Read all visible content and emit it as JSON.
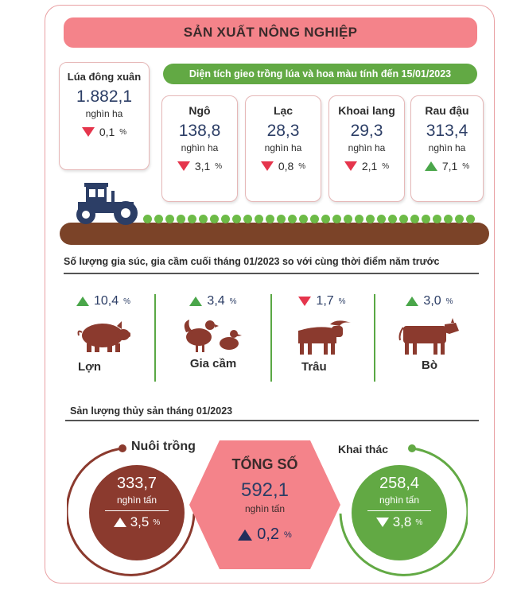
{
  "title": "SẢN XUẤT NÔNG NGHIỆP",
  "rice": {
    "name": "Lúa đông xuân",
    "value": "1.882,1",
    "unit": "nghìn ha",
    "change": "0,1",
    "pct": "%",
    "direction": "down"
  },
  "planting_banner": "Diện tích gieo trồng lúa và hoa màu tính đến 15/01/2023",
  "crops": [
    {
      "name": "Ngô",
      "value": "138,8",
      "unit": "nghìn ha",
      "change": "3,1",
      "pct": "%",
      "direction": "down"
    },
    {
      "name": "Lạc",
      "value": "28,3",
      "unit": "nghìn ha",
      "change": "0,8",
      "pct": "%",
      "direction": "down"
    },
    {
      "name": "Khoai lang",
      "value": "29,3",
      "unit": "nghìn ha",
      "change": "2,1",
      "pct": "%",
      "direction": "down"
    },
    {
      "name": "Rau đậu",
      "value": "313,4",
      "unit": "nghìn ha",
      "change": "7,1",
      "pct": "%",
      "direction": "up"
    }
  ],
  "livestock_heading": "Số lượng gia súc, gia cầm cuối tháng 01/2023 so với cùng thời điểm năm trước",
  "livestock": [
    {
      "name": "Lợn",
      "change": "10,4",
      "pct": "%",
      "direction": "up"
    },
    {
      "name": "Gia cầm",
      "change": "3,4",
      "pct": "%",
      "direction": "up"
    },
    {
      "name": "Trâu",
      "change": "1,7",
      "pct": "%",
      "direction": "down"
    },
    {
      "name": "Bò",
      "change": "3,0",
      "pct": "%",
      "direction": "up"
    }
  ],
  "fishery_heading": "Sản lượng thủy sản tháng 01/2023",
  "fishery": {
    "aquaculture": {
      "label": "Nuôi trồng",
      "value": "333,7",
      "unit": "nghìn tấn",
      "change": "3,5",
      "pct": "%",
      "direction": "up"
    },
    "total": {
      "label": "TỔNG SỐ",
      "value": "592,1",
      "unit": "nghìn tấn",
      "change": "0,2",
      "pct": "%",
      "direction": "up"
    },
    "catch": {
      "label": "Khai thác",
      "value": "258,4",
      "unit": "nghìn tấn",
      "change": "3,8",
      "pct": "%",
      "direction": "down"
    }
  },
  "colors": {
    "pink": "#f4838a",
    "green": "#62a944",
    "brown": "#8b3a2e",
    "navy": "#1f2e5c",
    "red": "#e5354c"
  }
}
